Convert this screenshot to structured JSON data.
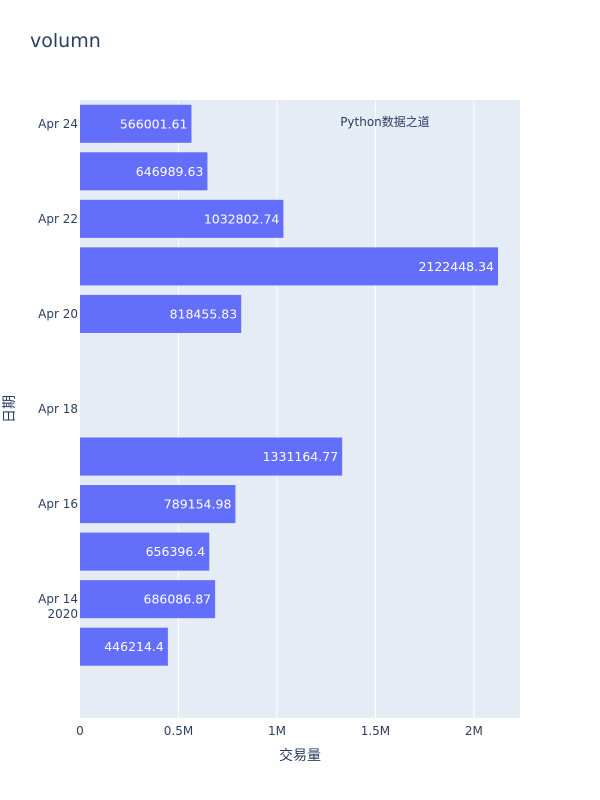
{
  "chart_data": {
    "type": "bar",
    "orientation": "horizontal",
    "title": "volumn",
    "xlabel": "交易量",
    "ylabel": "日期",
    "annotation": "Python数据之道",
    "xlim": [
      0,
      2234156
    ],
    "x_ticks": [
      {
        "value": 0,
        "label": "0"
      },
      {
        "value": 500000,
        "label": "0.5M"
      },
      {
        "value": 1000000,
        "label": "1M"
      },
      {
        "value": 1500000,
        "label": "1.5M"
      },
      {
        "value": 2000000,
        "label": "2M"
      }
    ],
    "y_ticks": [
      {
        "date": "2020-04-24",
        "label": "Apr 24"
      },
      {
        "date": "2020-04-22",
        "label": "Apr 22"
      },
      {
        "date": "2020-04-20",
        "label": "Apr 20"
      },
      {
        "date": "2020-04-18",
        "label": "Apr 18"
      },
      {
        "date": "2020-04-16",
        "label": "Apr 16"
      },
      {
        "date": "2020-04-14",
        "label": "Apr 14",
        "label2": "2020"
      }
    ],
    "ylim": [
      "2020-04-12",
      "2020-04-24"
    ],
    "categories": [
      "2020-04-24",
      "2020-04-23",
      "2020-04-22",
      "2020-04-21",
      "2020-04-20",
      "2020-04-17",
      "2020-04-16",
      "2020-04-15",
      "2020-04-14",
      "2020-04-13"
    ],
    "values": [
      566001.61,
      646989.63,
      1032802.74,
      2122448.34,
      818455.83,
      1331164.77,
      789154.98,
      656396.4,
      686086.87,
      446214.4
    ],
    "labels": [
      "566001.61",
      "646989.63",
      "1032802.74",
      "2122448.34",
      "818455.83",
      "1331164.77",
      "789154.98",
      "656396.4",
      "686086.87",
      "446214.4"
    ],
    "bar_color": "#636efa",
    "plot_bg": "#e5ecf6",
    "grid": true
  }
}
